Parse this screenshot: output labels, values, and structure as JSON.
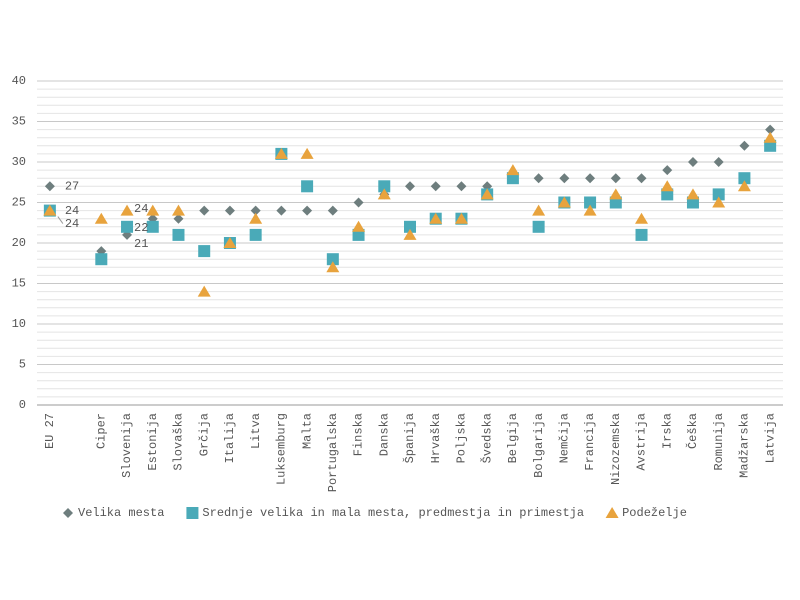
{
  "chart_data": {
    "type": "scatter-category",
    "categories": [
      "EU 27",
      null,
      "Ciper",
      "Slovenija",
      "Estonija",
      "Slovaška",
      "Grčija",
      "Italija",
      "Litva",
      "Luksemburg",
      "Malta",
      "Portugalska",
      "Finska",
      "Danska",
      "Španija",
      "Hrvaška",
      "Poljska",
      "Švedska",
      "Belgija",
      "Bolgarija",
      "Nemčija",
      "Francija",
      "Nizozemska",
      "Avstrija",
      "Irska",
      "Češka",
      "Romunija",
      "Madžarska",
      "Latvija"
    ],
    "series": [
      {
        "name": "Velika mesta",
        "color": "#6e7e7e",
        "marker": "diamond",
        "values": [
          27,
          null,
          19,
          21,
          23,
          23,
          24,
          24,
          24,
          24,
          24,
          24,
          25,
          26,
          27,
          27,
          27,
          27,
          28,
          28,
          28,
          28,
          28,
          28,
          29,
          30,
          30,
          32,
          34
        ]
      },
      {
        "name": "Srednje velika in mala mesta, predmestja in primestja",
        "color": "#4aaab8",
        "marker": "square",
        "values": [
          24,
          null,
          18,
          22,
          22,
          21,
          19,
          20,
          21,
          31,
          27,
          18,
          21,
          27,
          22,
          23,
          23,
          26,
          28,
          22,
          25,
          25,
          25,
          21,
          26,
          25,
          26,
          28,
          32
        ]
      },
      {
        "name": "Podeželje",
        "color": "#e8a33d",
        "marker": "triangle",
        "values": [
          24,
          null,
          23,
          24,
          24,
          24,
          14,
          20,
          23,
          31,
          31,
          17,
          22,
          26,
          21,
          23,
          23,
          26,
          29,
          24,
          25,
          24,
          26,
          23,
          27,
          26,
          25,
          27,
          33
        ]
      }
    ],
    "ylim": [
      0,
      40
    ],
    "yticks": [
      0,
      5,
      10,
      15,
      20,
      25,
      30,
      35,
      40
    ],
    "grid": true,
    "legend": "bottom"
  }
}
